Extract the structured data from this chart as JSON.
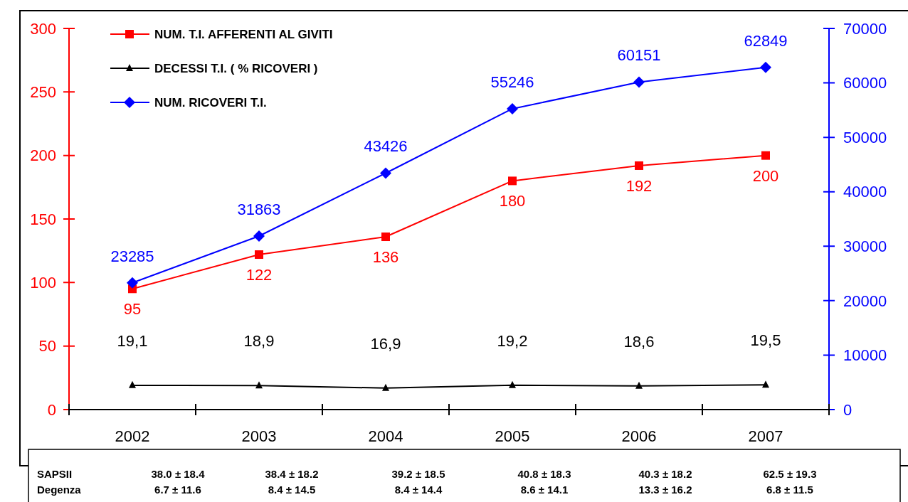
{
  "chart_data": {
    "type": "line",
    "categories": [
      "2002",
      "2003",
      "2004",
      "2005",
      "2006",
      "2007"
    ],
    "series": [
      {
        "name": "NUM. T.I. AFFERENTI AL GIVITI",
        "color": "#ff0000",
        "marker": "square",
        "values": [
          95,
          122,
          136,
          180,
          192,
          200
        ],
        "data_labels": true
      },
      {
        "name": "DECESSI T.I. ( % RICOVERI )",
        "color": "#000000",
        "marker": "triangle",
        "values": [
          19.1,
          18.9,
          16.9,
          19.2,
          18.6,
          19.5
        ],
        "value_labels": [
          "19,1",
          "18,9",
          "16,9",
          "19,2",
          "18,6",
          "19,5"
        ]
      },
      {
        "name": "NUM. RICOVERI T.I.",
        "color": "#0000ff",
        "marker": "diamond",
        "axis": "y2",
        "values": [
          23285,
          31863,
          43426,
          55246,
          60151,
          62849
        ],
        "data_labels": true
      }
    ],
    "ylim": [
      0,
      300
    ],
    "yticks": [
      0,
      50,
      100,
      150,
      200,
      250,
      300
    ],
    "y2lim": [
      0,
      70000
    ],
    "y2ticks": [
      0,
      10000,
      20000,
      30000,
      40000,
      50000,
      60000,
      70000
    ],
    "grid": false,
    "legend": "top left",
    "annotations": [
      "SAPSII",
      "38.0  ± 18.4",
      "38.4  ± 18.2",
      "39.2 ± 18.5",
      "40.8 ± 18.3",
      "40.3  ± 18.2",
      "62.5 ± 19.3",
      "Degenza",
      "6.7 ± 11.6",
      "8.4 ± 14.5",
      "8.4 ± 14.4",
      "8.6 ± 14.1",
      "13.3 ± 16.2",
      "6.8 ± 11.5"
    ]
  }
}
